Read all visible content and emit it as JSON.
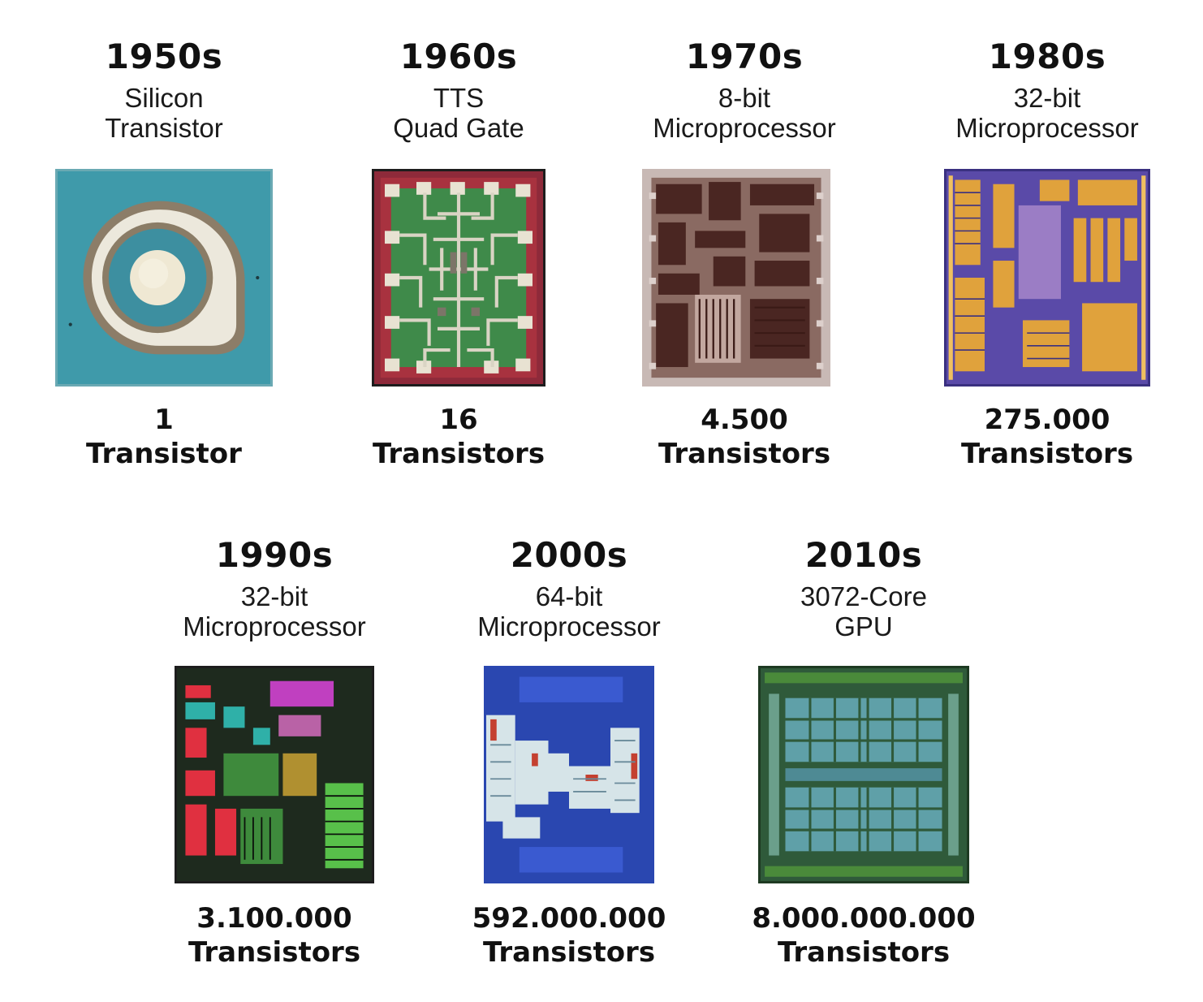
{
  "milestones": [
    {
      "decade": "1950s",
      "desc_line1": "Silicon",
      "desc_line2": "Transistor",
      "count": "1",
      "unit": "Transistor",
      "chip_icon": "silicon-transistor-die",
      "colors": {
        "base": "#3f9aaa",
        "accent": "#d9d4c4"
      }
    },
    {
      "decade": "1960s",
      "desc_line1": "TTS",
      "desc_line2": "Quad Gate",
      "count": "16",
      "unit": "Transistors",
      "chip_icon": "quad-gate-die",
      "colors": {
        "base": "#8e2a3a",
        "accent": "#3f8a4a"
      }
    },
    {
      "decade": "1970s",
      "desc_line1": "8-bit",
      "desc_line2": "Microprocessor",
      "count": "4.500",
      "unit": "Transistors",
      "chip_icon": "8bit-microprocessor-die",
      "colors": {
        "base": "#c8b9b5",
        "accent": "#5a2f2a"
      }
    },
    {
      "decade": "1980s",
      "desc_line1": "32-bit",
      "desc_line2": "Microprocessor",
      "count": "275.000",
      "unit": "Transistors",
      "chip_icon": "32bit-microprocessor-die",
      "colors": {
        "base": "#5a4aa8",
        "accent": "#e0a23c"
      }
    },
    {
      "decade": "1990s",
      "desc_line1": "32-bit",
      "desc_line2": "Microprocessor",
      "count": "3.100.000",
      "unit": "Transistors",
      "chip_icon": "32bit-microprocessor-color-die",
      "colors": {
        "base": "#1e2a1e",
        "accent": "#e03040"
      }
    },
    {
      "decade": "2000s",
      "desc_line1": "64-bit",
      "desc_line2": "Microprocessor",
      "count": "592.000.000",
      "unit": "Transistors",
      "chip_icon": "64bit-microprocessor-die",
      "colors": {
        "base": "#2a47b0",
        "accent": "#d6e4e8"
      }
    },
    {
      "decade": "2010s",
      "desc_line1": "3072-Core",
      "desc_line2": "GPU",
      "count": "8.000.000.000",
      "unit": "Transistors",
      "chip_icon": "gpu-die",
      "colors": {
        "base": "#2f5a3a",
        "accent": "#5fa0a8"
      }
    }
  ]
}
